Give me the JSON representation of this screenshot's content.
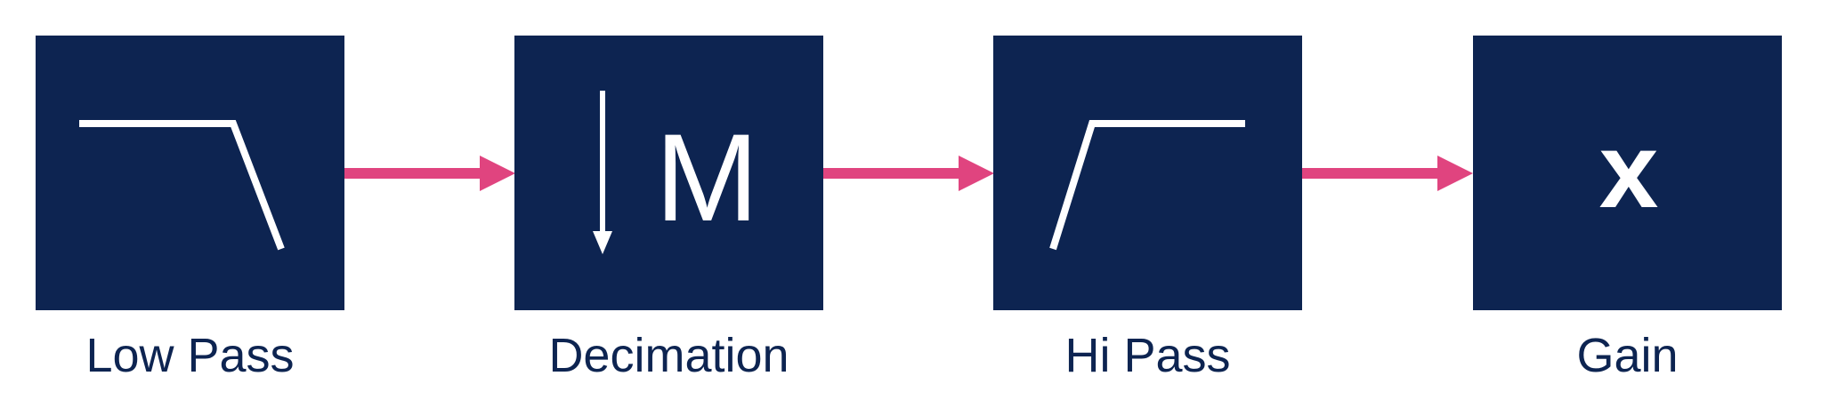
{
  "colors": {
    "block_fill": "#0d2451",
    "block_symbol": "#ffffff",
    "arrow": "#e0447f",
    "label_text": "#0d2451",
    "background": "#ffffff"
  },
  "blocks": [
    {
      "label": "Low Pass",
      "icon": "low-pass-filter-icon"
    },
    {
      "label": "Decimation",
      "icon": "downsample-arrow-icon",
      "symbol": "M"
    },
    {
      "label": "Hi Pass",
      "icon": "high-pass-filter-icon"
    },
    {
      "label": "Gain",
      "icon": "multiply-icon",
      "symbol": "x"
    }
  ],
  "connectors": [
    {
      "from": "Low Pass",
      "to": "Decimation"
    },
    {
      "from": "Decimation",
      "to": "Hi Pass"
    },
    {
      "from": "Hi Pass",
      "to": "Gain"
    }
  ]
}
